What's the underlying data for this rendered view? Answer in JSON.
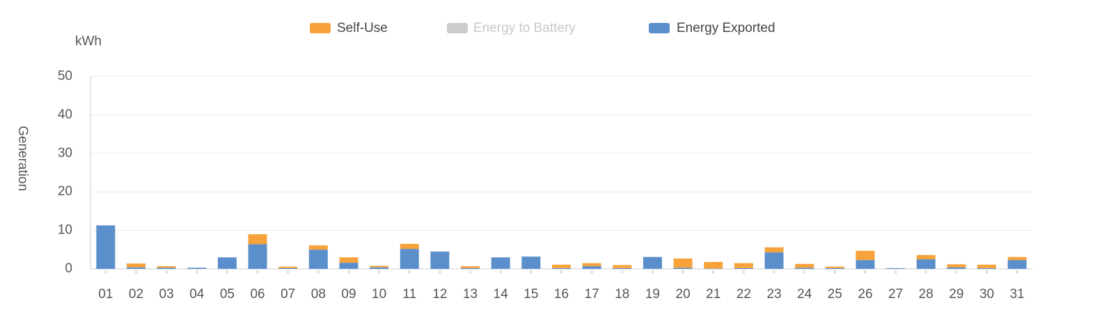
{
  "chart_data": {
    "type": "stacked_bar",
    "y_unit": "kWh",
    "y_label": "Generation",
    "categories": [
      "01",
      "02",
      "03",
      "04",
      "05",
      "06",
      "07",
      "08",
      "09",
      "10",
      "11",
      "12",
      "13",
      "14",
      "15",
      "16",
      "17",
      "18",
      "19",
      "20",
      "21",
      "22",
      "23",
      "24",
      "25",
      "26",
      "27",
      "28",
      "29",
      "30",
      "31"
    ],
    "series": [
      {
        "name": "Self-Use",
        "color": "#f7a23a",
        "values": [
          0,
          1.0,
          0.4,
          0,
          0,
          2.6,
          0.4,
          1.1,
          1.4,
          0.4,
          1.3,
          0,
          0.5,
          0,
          0,
          0.9,
          0.8,
          0.8,
          0,
          2.4,
          1.7,
          1.3,
          1.3,
          1.0,
          0.4,
          2.4,
          0,
          1.1,
          0.8,
          0.9,
          0.8
        ]
      },
      {
        "name": "Energy to Battery",
        "color": "#cccccc",
        "values": [
          0,
          0,
          0,
          0,
          0,
          0,
          0,
          0,
          0,
          0,
          0,
          0,
          0,
          0,
          0,
          0,
          0,
          0,
          0,
          0,
          0,
          0,
          0,
          0,
          0,
          0,
          0,
          0,
          0,
          0,
          0
        ]
      },
      {
        "name": "Energy Exported",
        "color": "#5b8fcb",
        "values": [
          11.3,
          0.4,
          0.3,
          0.3,
          3.0,
          6.4,
          0.2,
          5.0,
          1.6,
          0.4,
          5.2,
          4.5,
          0.2,
          3.0,
          3.2,
          0.2,
          0.7,
          0.2,
          3.1,
          0.3,
          0.1,
          0.2,
          4.3,
          0.3,
          0.2,
          2.3,
          0.2,
          2.5,
          0.4,
          0.2,
          2.3
        ]
      }
    ],
    "ylim": [
      0,
      50
    ],
    "yticks": [
      0,
      10,
      20,
      30,
      40,
      50
    ],
    "grid": true
  }
}
